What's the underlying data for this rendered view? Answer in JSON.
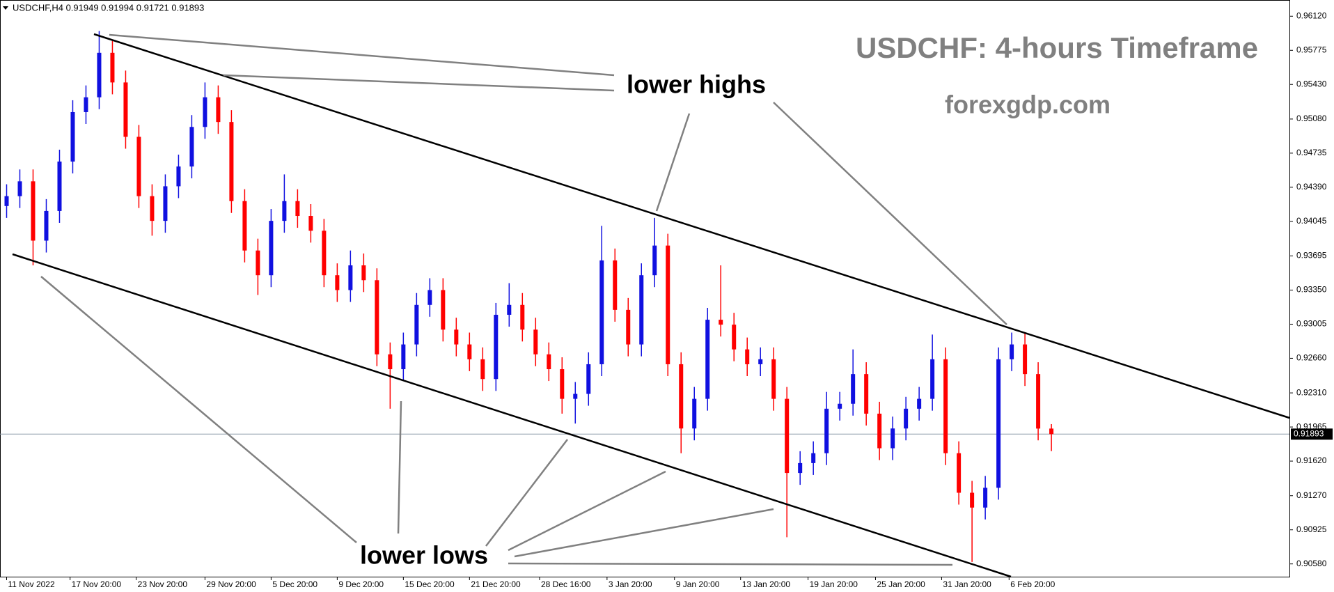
{
  "chart_data": {
    "type": "candlestick",
    "header": "USDCHF,H4  0.91949 0.91994 0.91721 0.91893",
    "title": "USDCHF: 4-hours Timeframe",
    "subtitle": "forexgdp.com",
    "annotations": [
      "lower highs",
      "lower lows"
    ],
    "up_color": "#1010e0",
    "down_color": "#ff0000",
    "ylim": [
      0.90451,
      0.96284
    ],
    "yticks": [
      {
        "value": 0.9612,
        "label": "0.96120"
      },
      {
        "value": 0.95775,
        "label": "0.95775"
      },
      {
        "value": 0.9543,
        "label": "0.95430"
      },
      {
        "value": 0.9508,
        "label": "0.95080"
      },
      {
        "value": 0.94735,
        "label": "0.94735"
      },
      {
        "value": 0.9439,
        "label": "0.94390"
      },
      {
        "value": 0.94045,
        "label": "0.94045"
      },
      {
        "value": 0.93695,
        "label": "0.93695"
      },
      {
        "value": 0.9335,
        "label": "0.93350"
      },
      {
        "value": 0.93005,
        "label": "0.93005"
      },
      {
        "value": 0.9266,
        "label": "0.92660"
      },
      {
        "value": 0.9231,
        "label": "0.92310"
      },
      {
        "value": 0.91965,
        "label": "0.91965"
      },
      {
        "value": 0.9162,
        "label": "0.91620"
      },
      {
        "value": 0.9127,
        "label": "0.91270"
      },
      {
        "value": 0.90925,
        "label": "0.90925"
      },
      {
        "value": 0.9058,
        "label": "0.90580"
      }
    ],
    "current_price": 0.91893,
    "xlim": [
      -0.5,
      97
    ],
    "xticks": [
      {
        "value": 0,
        "label": "11 Nov 2022"
      },
      {
        "value": 4.8,
        "label": "17 Nov 20:00"
      },
      {
        "value": 9.8,
        "label": "23 Nov 20:00"
      },
      {
        "value": 15,
        "label": "29 Nov 20:00"
      },
      {
        "value": 20,
        "label": "5 Dec 20:00"
      },
      {
        "value": 25,
        "label": "9 Dec 20:00"
      },
      {
        "value": 30,
        "label": "15 Dec 20:00"
      },
      {
        "value": 35,
        "label": "21 Dec 20:00"
      },
      {
        "value": 40.3,
        "label": "28 Dec 16:00"
      },
      {
        "value": 45.4,
        "label": "3 Jan 20:00"
      },
      {
        "value": 50.5,
        "label": "9 Jan 20:00"
      },
      {
        "value": 55.5,
        "label": "13 Jan 20:00"
      },
      {
        "value": 60.6,
        "label": "19 Jan 20:00"
      },
      {
        "value": 65.7,
        "label": "25 Jan 20:00"
      },
      {
        "value": 70.7,
        "label": "31 Jan 20:00"
      },
      {
        "value": 75.8,
        "label": "6 Feb 20:00"
      }
    ],
    "open": [
      0.942,
      0.943,
      0.9445,
      0.9385,
      0.9415,
      0.9465,
      0.9515,
      0.953,
      0.9575,
      0.9545,
      0.949,
      0.943,
      0.9405,
      0.944,
      0.946,
      0.95,
      0.953,
      0.9505,
      0.9425,
      0.9375,
      0.935,
      0.9405,
      0.9425,
      0.941,
      0.9395,
      0.935,
      0.9335,
      0.936,
      0.9345,
      0.927,
      0.9255,
      0.928,
      0.932,
      0.9335,
      0.9295,
      0.928,
      0.9265,
      0.9245,
      0.931,
      0.932,
      0.9295,
      0.927,
      0.9255,
      0.9225,
      0.923,
      0.926,
      0.9365,
      0.9315,
      0.928,
      0.935,
      0.938,
      0.926,
      0.9195,
      0.9225,
      0.9305,
      0.93,
      0.9275,
      0.926,
      0.9265,
      0.9225,
      0.915,
      0.916,
      0.917,
      0.9215,
      0.922,
      0.925,
      0.921,
      0.9175,
      0.9195,
      0.9215,
      0.9225,
      0.9265,
      0.917,
      0.913,
      0.9115,
      0.9135,
      0.9265,
      0.928,
      0.925,
      0.91949
    ],
    "high": [
      0.9442,
      0.9457,
      0.9457,
      0.9427,
      0.9477,
      0.9527,
      0.9542,
      0.9597,
      0.9587,
      0.9557,
      0.9502,
      0.9442,
      0.9452,
      0.9472,
      0.9512,
      0.9545,
      0.9542,
      0.9517,
      0.9437,
      0.9387,
      0.9417,
      0.9452,
      0.9437,
      0.9422,
      0.9407,
      0.9362,
      0.9375,
      0.9372,
      0.9357,
      0.9282,
      0.9292,
      0.9332,
      0.9347,
      0.9347,
      0.9307,
      0.9292,
      0.9277,
      0.9322,
      0.9342,
      0.9332,
      0.9307,
      0.9282,
      0.9267,
      0.9242,
      0.9272,
      0.94,
      0.9377,
      0.9327,
      0.9362,
      0.9408,
      0.9392,
      0.9272,
      0.9237,
      0.9317,
      0.936,
      0.9312,
      0.9287,
      0.9277,
      0.9277,
      0.9237,
      0.9172,
      0.9182,
      0.9232,
      0.9232,
      0.9275,
      0.9262,
      0.9222,
      0.9207,
      0.9227,
      0.9237,
      0.929,
      0.9277,
      0.9182,
      0.9142,
      0.9147,
      0.9277,
      0.9292,
      0.9292,
      0.9262,
      0.91994
    ],
    "low": [
      0.9408,
      0.9418,
      0.936,
      0.9373,
      0.9403,
      0.9453,
      0.9503,
      0.9518,
      0.9533,
      0.9478,
      0.9418,
      0.939,
      0.9393,
      0.9428,
      0.9448,
      0.9488,
      0.9493,
      0.9413,
      0.9363,
      0.933,
      0.9338,
      0.9393,
      0.9398,
      0.9383,
      0.9338,
      0.9323,
      0.9323,
      0.9333,
      0.9258,
      0.9215,
      0.9243,
      0.9268,
      0.9308,
      0.9283,
      0.9268,
      0.9253,
      0.9233,
      0.9233,
      0.9298,
      0.9283,
      0.9258,
      0.9243,
      0.921,
      0.92,
      0.9218,
      0.9248,
      0.9303,
      0.9268,
      0.9268,
      0.9338,
      0.9248,
      0.917,
      0.9183,
      0.9213,
      0.9288,
      0.9263,
      0.9248,
      0.9248,
      0.9213,
      0.9085,
      0.9138,
      0.9148,
      0.9158,
      0.9203,
      0.9208,
      0.9198,
      0.9163,
      0.9163,
      0.9183,
      0.9203,
      0.9213,
      0.9158,
      0.9118,
      0.906,
      0.9103,
      0.9123,
      0.9253,
      0.9238,
      0.9183,
      0.91721
    ],
    "close": [
      0.943,
      0.9445,
      0.9385,
      0.9415,
      0.9465,
      0.9515,
      0.953,
      0.9575,
      0.9545,
      0.949,
      0.943,
      0.9405,
      0.944,
      0.946,
      0.95,
      0.953,
      0.9505,
      0.9425,
      0.9375,
      0.935,
      0.9405,
      0.9425,
      0.941,
      0.9395,
      0.935,
      0.9335,
      0.936,
      0.9345,
      0.927,
      0.9255,
      0.928,
      0.932,
      0.9335,
      0.9295,
      0.928,
      0.9265,
      0.9245,
      0.931,
      0.932,
      0.9295,
      0.927,
      0.9255,
      0.9225,
      0.923,
      0.926,
      0.9365,
      0.9315,
      0.928,
      0.935,
      0.938,
      0.926,
      0.9195,
      0.9225,
      0.9305,
      0.93,
      0.9275,
      0.926,
      0.9265,
      0.9225,
      0.915,
      0.916,
      0.917,
      0.9215,
      0.922,
      0.925,
      0.921,
      0.9175,
      0.9195,
      0.9215,
      0.9225,
      0.9265,
      0.917,
      0.913,
      0.9115,
      0.9135,
      0.9265,
      0.928,
      0.925,
      0.91949,
      0.91893
    ]
  }
}
